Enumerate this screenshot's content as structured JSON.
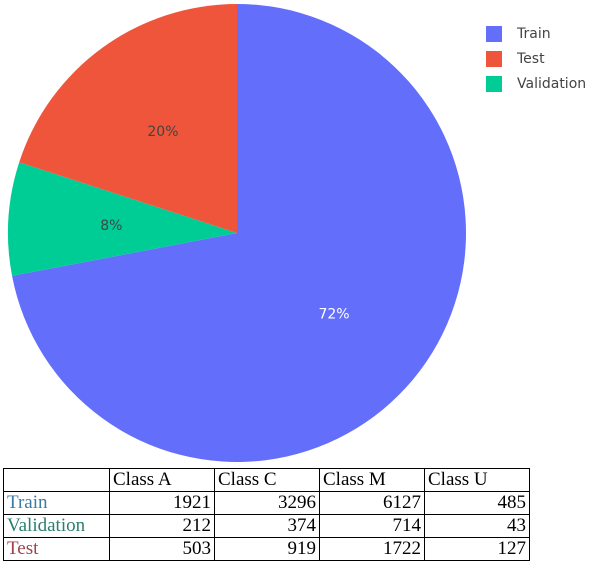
{
  "chart_data": {
    "type": "pie",
    "labels": [
      "Train",
      "Validation",
      "Test"
    ],
    "values": [
      72,
      8,
      20
    ],
    "slice_labels": [
      "72%",
      "8%",
      "20%"
    ],
    "legend_position": "top-right",
    "legend_order": [
      "Train",
      "Test",
      "Validation"
    ],
    "colors": {
      "Train": "#636efa",
      "Test": "#ef553b",
      "Validation": "#00cc96"
    },
    "start_angle": "12 o'clock",
    "direction": "clockwise"
  },
  "legend": {
    "items": [
      {
        "label": "Train",
        "color": "#636efa"
      },
      {
        "label": "Test",
        "color": "#ef553b"
      },
      {
        "label": "Validation",
        "color": "#00cc96"
      }
    ]
  },
  "table": {
    "headers": [
      "",
      "Class A",
      "Class C",
      "Class M",
      "Class U"
    ],
    "rows": [
      {
        "label": "Train",
        "color": "#3a7ca5",
        "values": [
          "1921",
          "3296",
          "6127",
          "485"
        ]
      },
      {
        "label": "Validation",
        "color": "#2a7f6f",
        "values": [
          "212",
          "374",
          "714",
          "43"
        ]
      },
      {
        "label": "Test",
        "color": "#a3404a",
        "values": [
          "503",
          "919",
          "1722",
          "127"
        ]
      }
    ]
  }
}
